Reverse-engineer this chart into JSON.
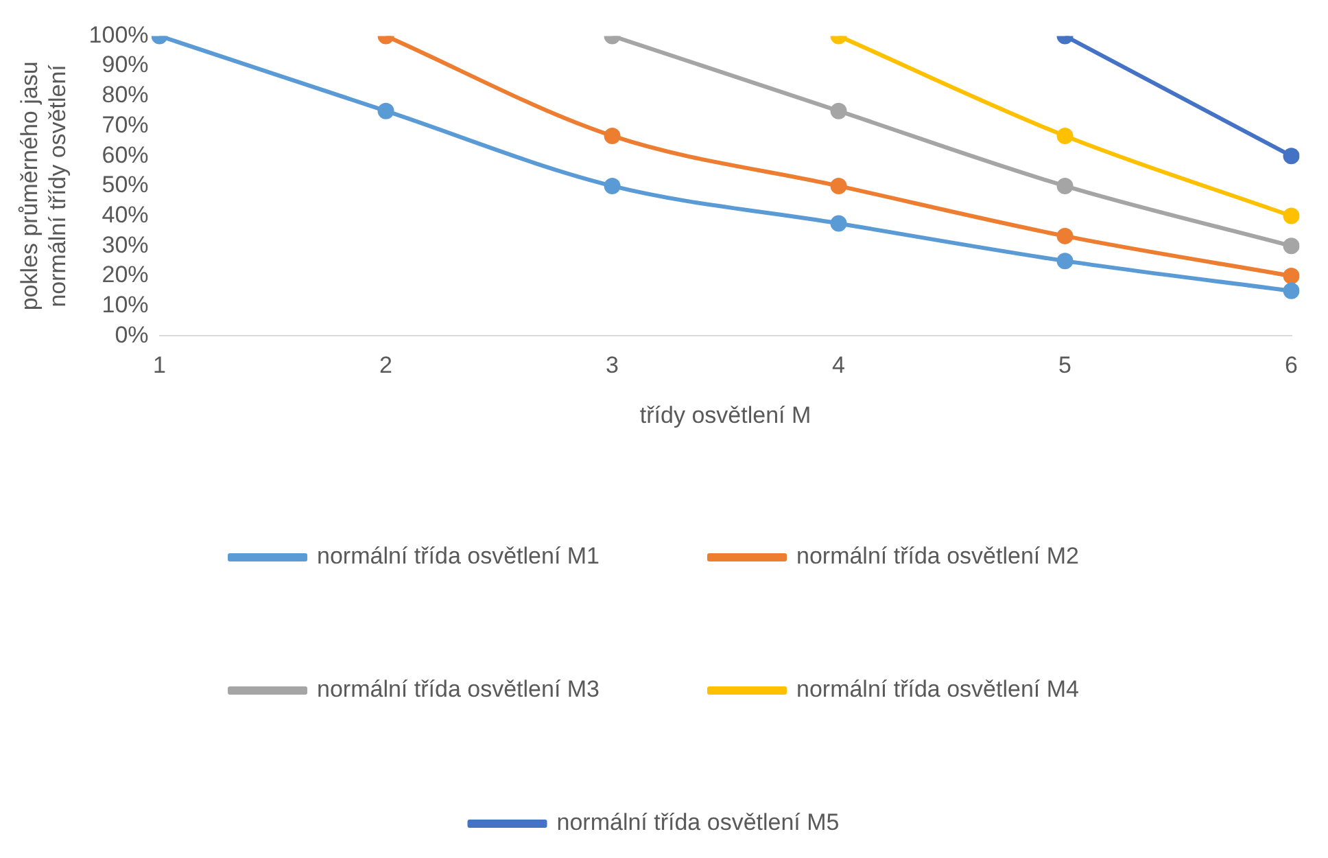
{
  "chart_data": {
    "type": "line",
    "xlabel": "třídy osvětlení M",
    "ylabel": "pokles průměrného jasu\nnormální třídy osvětlení",
    "categories": [
      "1",
      "2",
      "3",
      "4",
      "5",
      "6"
    ],
    "series": [
      {
        "name": "normální třída osvětlení M1",
        "color": "#5b9bd5",
        "values": [
          100,
          75,
          50,
          37.5,
          25,
          15
        ]
      },
      {
        "name": "normální třída osvětlení M2",
        "color": "#ed7d31",
        "values": [
          null,
          100,
          66.7,
          50,
          33.3,
          20
        ]
      },
      {
        "name": "normální třída osvětlení M3",
        "color": "#a5a5a5",
        "values": [
          null,
          null,
          100,
          75,
          50,
          30
        ]
      },
      {
        "name": "normální třída osvětlení M4",
        "color": "#ffc000",
        "values": [
          null,
          null,
          null,
          100,
          66.7,
          40
        ]
      },
      {
        "name": "normální třída osvětlení M5",
        "color": "#4472c4",
        "values": [
          null,
          null,
          null,
          null,
          100,
          60
        ]
      }
    ],
    "ylim": [
      0,
      100
    ],
    "yticks": [
      {
        "value": 0,
        "label": "0%"
      },
      {
        "value": 10,
        "label": "10%"
      },
      {
        "value": 20,
        "label": "20%"
      },
      {
        "value": 30,
        "label": "30%"
      },
      {
        "value": 40,
        "label": "40%"
      },
      {
        "value": 50,
        "label": "50%"
      },
      {
        "value": 60,
        "label": "60%"
      },
      {
        "value": 70,
        "label": "70%"
      },
      {
        "value": 80,
        "label": "80%"
      },
      {
        "value": 90,
        "label": "90%"
      },
      {
        "value": 100,
        "label": "100%"
      }
    ],
    "grid": false,
    "legend": "bottom",
    "marker": "circle",
    "line_style": "solid"
  }
}
